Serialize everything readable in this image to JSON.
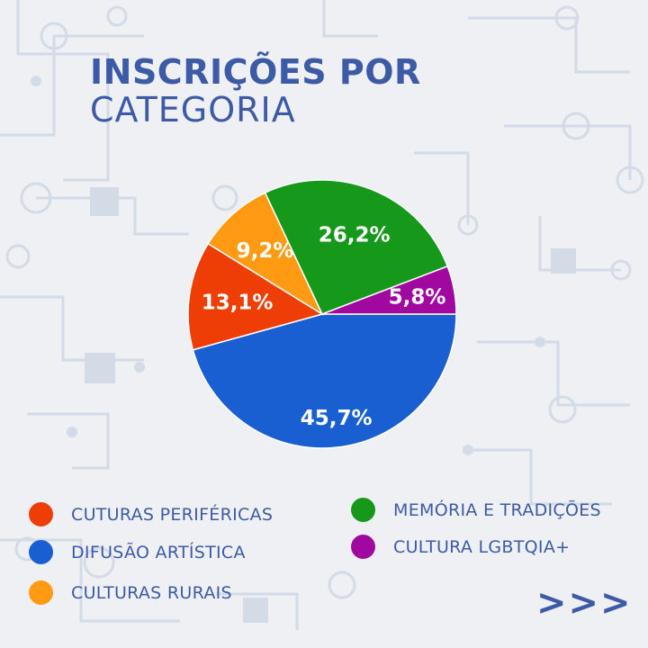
{
  "title": {
    "line1": "INSCRIÇÕES POR",
    "line2": "CATEGORIA"
  },
  "chart_data": {
    "type": "pie",
    "title": "INSCRIÇÕES POR CATEGORIA",
    "slices": [
      {
        "label": "DIFUSÃO ARTÍSTICA",
        "value": 45.7,
        "display": "45,7%",
        "color": "#1a5fd1"
      },
      {
        "label": "CUTURAS PERIFÉRICAS",
        "value": 13.1,
        "display": "13,1%",
        "color": "#ee3e06"
      },
      {
        "label": "CULTURAS RURAIS",
        "value": 9.2,
        "display": "9,2%",
        "color": "#ff9a12"
      },
      {
        "label": "MEMÓRIA E TRADIÇÕES",
        "value": 26.2,
        "display": "26,2%",
        "color": "#16991a"
      },
      {
        "label": "CULTURA LGBTQIA+",
        "value": 5.8,
        "display": "5,8%",
        "color": "#a0089f"
      }
    ],
    "legend_position": "bottom"
  },
  "legend": [
    {
      "label": "CUTURAS PERIFÉRICAS",
      "color": "#ee3e06"
    },
    {
      "label": "DIFUSÃO ARTÍSTICA",
      "color": "#1a5fd1"
    },
    {
      "label": "CULTURAS RURAIS",
      "color": "#ff9a12"
    },
    {
      "label": "MEMÓRIA E TRADIÇÕES",
      "color": "#16991a"
    },
    {
      "label": "CULTURA LGBTQIA+",
      "color": "#a0089f"
    }
  ],
  "next_indicator": ">>>"
}
